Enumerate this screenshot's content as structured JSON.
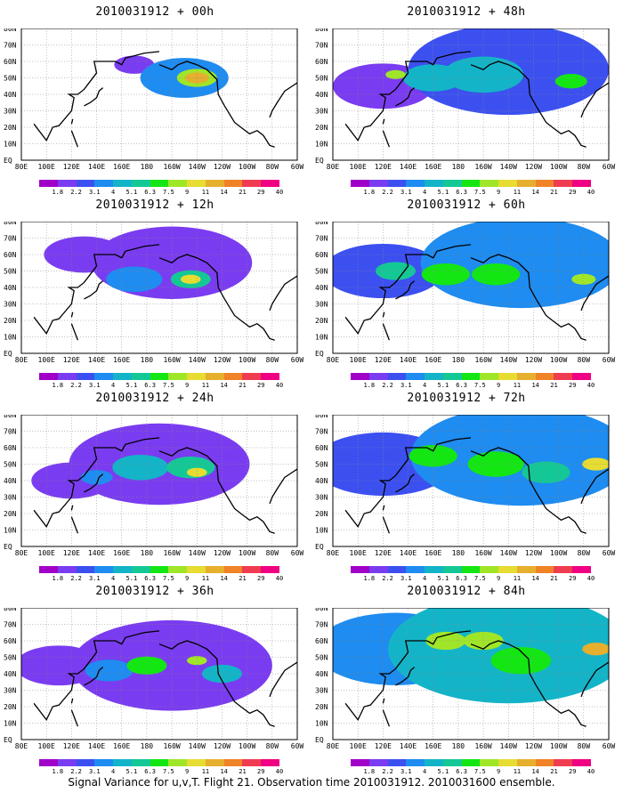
{
  "caption": "Signal Variance for u,v,T. Flight 21. Observation time 2010031912. 2010031600 ensemble.",
  "colorbar": {
    "levels": [
      "1.8",
      "2.2",
      "3.1",
      "4",
      "5.1",
      "6.3",
      "7.5",
      "9",
      "11",
      "14",
      "21",
      "29",
      "40"
    ],
    "colors": [
      "#a000c8",
      "#7a3cf0",
      "#3c50f0",
      "#1e8cf0",
      "#14b4c8",
      "#14c896",
      "#14e614",
      "#a0e628",
      "#e6dc32",
      "#e6af2d",
      "#f08228",
      "#f03c50",
      "#f00082"
    ]
  },
  "lat_labels": [
    "80N",
    "70N",
    "60N",
    "50N",
    "40N",
    "30N",
    "20N",
    "10N",
    "EQ"
  ],
  "lon_labels": [
    "80E",
    "100E",
    "120E",
    "140E",
    "160E",
    "180",
    "160W",
    "140W",
    "120W",
    "100W",
    "80W",
    "60W"
  ],
  "chart_data": [
    {
      "type": "heatmap",
      "title": "2010031912 + 00h",
      "lead_hours": 0,
      "blobs": [
        {
          "lon": -140,
          "lat": 50,
          "level": 9,
          "r": 6
        },
        {
          "lon": -140,
          "lat": 50,
          "level": 7,
          "r": 10
        },
        {
          "lon": -150,
          "lat": 50,
          "level": 3,
          "r": 22
        },
        {
          "lon": 170,
          "lat": 58,
          "level": 1,
          "r": 10
        }
      ]
    },
    {
      "type": "heatmap",
      "title": "2010031912 + 12h",
      "lead_hours": 12,
      "blobs": [
        {
          "lon": -145,
          "lat": 45,
          "level": 8,
          "r": 5
        },
        {
          "lon": -145,
          "lat": 45,
          "level": 5,
          "r": 10
        },
        {
          "lon": 170,
          "lat": 45,
          "level": 3,
          "r": 14
        },
        {
          "lon": -160,
          "lat": 55,
          "level": 1,
          "r": 40
        },
        {
          "lon": 130,
          "lat": 60,
          "level": 1,
          "r": 20
        }
      ]
    },
    {
      "type": "heatmap",
      "title": "2010031912 + 24h",
      "lead_hours": 24,
      "blobs": [
        {
          "lon": -140,
          "lat": 45,
          "level": 8,
          "r": 5
        },
        {
          "lon": -145,
          "lat": 48,
          "level": 5,
          "r": 12
        },
        {
          "lon": 175,
          "lat": 48,
          "level": 4,
          "r": 14
        },
        {
          "lon": 140,
          "lat": 42,
          "level": 3,
          "r": 8
        },
        {
          "lon": -170,
          "lat": 50,
          "level": 1,
          "r": 45
        },
        {
          "lon": 120,
          "lat": 40,
          "level": 1,
          "r": 20
        }
      ]
    },
    {
      "type": "heatmap",
      "title": "2010031912 + 36h",
      "lead_hours": 36,
      "blobs": [
        {
          "lon": -140,
          "lat": 48,
          "level": 7,
          "r": 5
        },
        {
          "lon": 180,
          "lat": 45,
          "level": 6,
          "r": 10
        },
        {
          "lon": -120,
          "lat": 40,
          "level": 4,
          "r": 10
        },
        {
          "lon": 150,
          "lat": 42,
          "level": 3,
          "r": 12
        },
        {
          "lon": -160,
          "lat": 45,
          "level": 1,
          "r": 50
        },
        {
          "lon": 110,
          "lat": 45,
          "level": 1,
          "r": 22
        }
      ]
    },
    {
      "type": "heatmap",
      "title": "2010031912 + 48h",
      "lead_hours": 48,
      "blobs": [
        {
          "lon": 130,
          "lat": 52,
          "level": 7,
          "r": 5
        },
        {
          "lon": -90,
          "lat": 48,
          "level": 6,
          "r": 8
        },
        {
          "lon": -160,
          "lat": 52,
          "level": 4,
          "r": 20
        },
        {
          "lon": 160,
          "lat": 50,
          "level": 4,
          "r": 15
        },
        {
          "lon": -140,
          "lat": 55,
          "level": 2,
          "r": 50
        },
        {
          "lon": 120,
          "lat": 45,
          "level": 1,
          "r": 25
        }
      ]
    },
    {
      "type": "heatmap",
      "title": "2010031912 + 60h",
      "lead_hours": 60,
      "blobs": [
        {
          "lon": -80,
          "lat": 45,
          "level": 7,
          "r": 6
        },
        {
          "lon": -150,
          "lat": 48,
          "level": 6,
          "r": 12
        },
        {
          "lon": 170,
          "lat": 48,
          "level": 6,
          "r": 12
        },
        {
          "lon": 130,
          "lat": 50,
          "level": 5,
          "r": 10
        },
        {
          "lon": -130,
          "lat": 55,
          "level": 3,
          "r": 50
        },
        {
          "lon": 120,
          "lat": 50,
          "level": 2,
          "r": 30
        }
      ]
    },
    {
      "type": "heatmap",
      "title": "2010031912 + 72h",
      "lead_hours": 72,
      "blobs": [
        {
          "lon": -70,
          "lat": 50,
          "level": 8,
          "r": 7
        },
        {
          "lon": -150,
          "lat": 50,
          "level": 6,
          "r": 14
        },
        {
          "lon": 160,
          "lat": 55,
          "level": 6,
          "r": 12
        },
        {
          "lon": -110,
          "lat": 45,
          "level": 5,
          "r": 12
        },
        {
          "lon": -130,
          "lat": 55,
          "level": 3,
          "r": 55
        },
        {
          "lon": 120,
          "lat": 50,
          "level": 2,
          "r": 35
        }
      ]
    },
    {
      "type": "heatmap",
      "title": "2010031912 + 84h",
      "lead_hours": 84,
      "blobs": [
        {
          "lon": -70,
          "lat": 55,
          "level": 9,
          "r": 7
        },
        {
          "lon": -160,
          "lat": 60,
          "level": 7,
          "r": 10
        },
        {
          "lon": 170,
          "lat": 60,
          "level": 7,
          "r": 10
        },
        {
          "lon": -130,
          "lat": 48,
          "level": 6,
          "r": 15
        },
        {
          "lon": -140,
          "lat": 55,
          "level": 4,
          "r": 60
        },
        {
          "lon": 130,
          "lat": 55,
          "level": 3,
          "r": 40
        }
      ]
    }
  ]
}
